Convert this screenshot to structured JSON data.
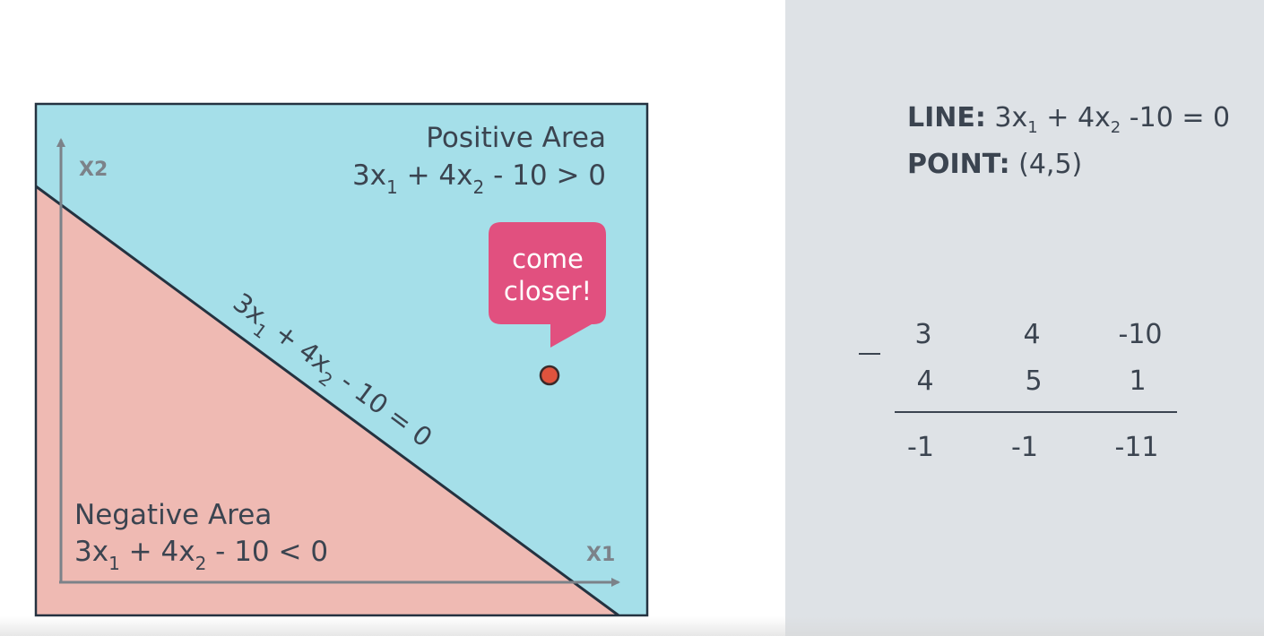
{
  "colors": {
    "positive_fill": "#a5dfe9",
    "negative_fill": "#efbab3",
    "boundary_line": "#243240",
    "axis": "#7c8289",
    "frame": "#243240",
    "bubble": "#e1507f",
    "point": "#e0533d",
    "panel_bg": "#dee2e6",
    "text": "#3b4450"
  },
  "diagram": {
    "x_axis_label": "X1",
    "y_axis_label": "X2",
    "positive_area": {
      "title": "Positive Area",
      "eq": {
        "a": "3x",
        "s1": "1",
        "b": " + 4x",
        "s2": "2",
        "c": " - 10 > 0"
      }
    },
    "negative_area": {
      "title": "Negative Area",
      "eq": {
        "a": "3x",
        "s1": "1",
        "b": " + 4x",
        "s2": "2",
        "c": " - 10 < 0"
      }
    },
    "line_label": {
      "a": "3x",
      "s1": "1",
      "b": " + 4x",
      "s2": "2",
      "c": " - 10 = 0"
    },
    "bubble": {
      "line1": "come",
      "line2": "closer!"
    }
  },
  "info": {
    "line_key": "LINE:",
    "line_eq": {
      "a": " 3x",
      "s1": "1",
      "b": " + 4x",
      "s2": "2",
      "c": " -10 = 0"
    },
    "point_key": "POINT:",
    "point_value": " (4,5)"
  },
  "calculation": {
    "operator": "−",
    "row1": [
      "3",
      "4",
      "-10"
    ],
    "row2": [
      "4",
      "5",
      "1"
    ],
    "result": [
      "-1",
      "-1",
      "-11"
    ]
  }
}
